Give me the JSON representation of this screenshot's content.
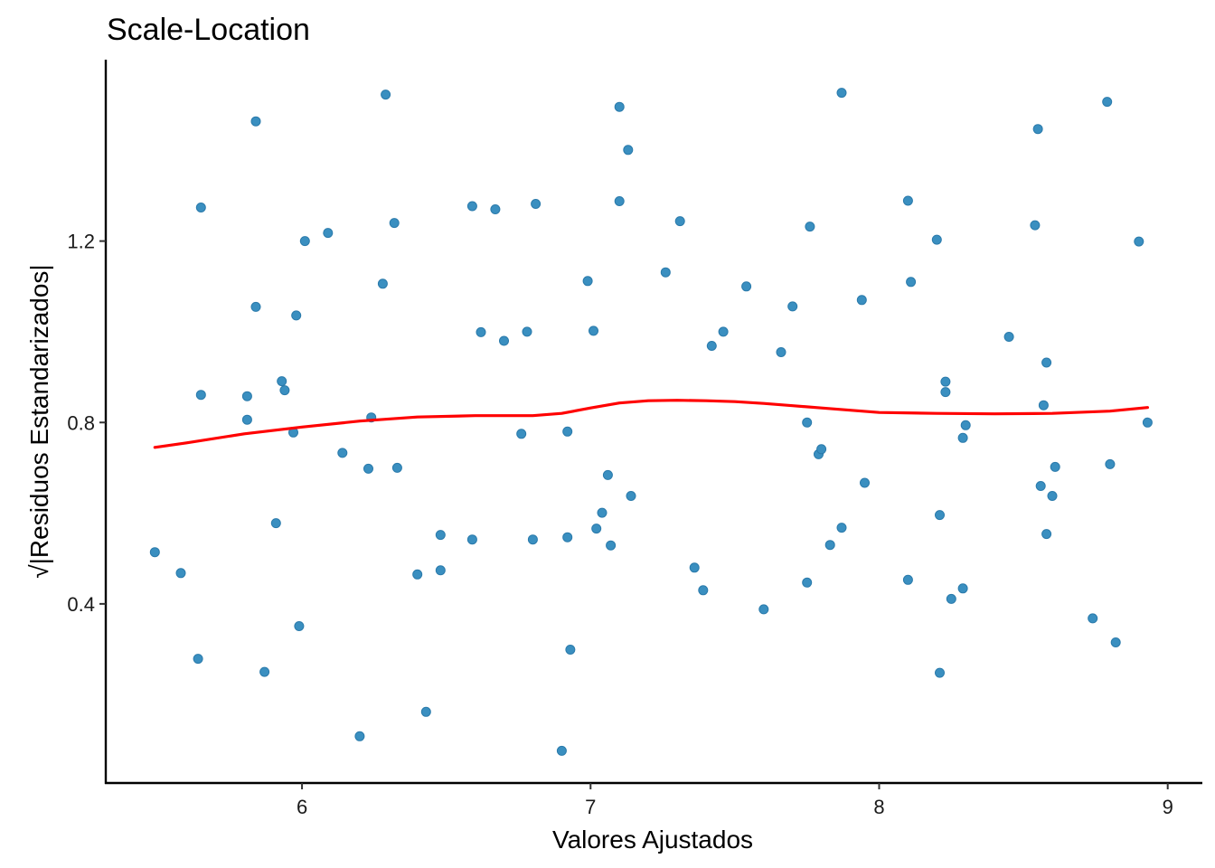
{
  "chart_data": {
    "type": "scatter",
    "title": "Scale-Location",
    "xlabel": "Valores Ajustados",
    "ylabel": "√|Residuos Estandarizados|",
    "xlim": [
      5.32,
      9.12
    ],
    "ylim": [
      0.005,
      1.6
    ],
    "xticks": [
      6,
      7,
      8,
      9
    ],
    "yticks": [
      0.4,
      0.8,
      1.2
    ],
    "xtick_labels": [
      "6",
      "7",
      "8",
      "9"
    ],
    "ytick_labels": [
      "0.4",
      "0.8",
      "1.2"
    ],
    "grid": false,
    "legend": "none",
    "point_color": "#3a8fc0",
    "point_stroke": "#2a7aab",
    "smooth_color": "#ff0000",
    "points": [
      [
        5.49,
        0.514
      ],
      [
        5.58,
        0.468
      ],
      [
        5.64,
        0.279
      ],
      [
        5.65,
        1.274
      ],
      [
        5.65,
        0.861
      ],
      [
        5.81,
        0.858
      ],
      [
        5.81,
        0.806
      ],
      [
        5.84,
        1.464
      ],
      [
        5.84,
        1.055
      ],
      [
        5.87,
        0.25
      ],
      [
        5.91,
        0.578
      ],
      [
        5.93,
        0.891
      ],
      [
        5.94,
        0.871
      ],
      [
        5.97,
        0.778
      ],
      [
        5.98,
        1.036
      ],
      [
        5.99,
        0.351
      ],
      [
        6.01,
        1.2
      ],
      [
        6.09,
        1.218
      ],
      [
        6.14,
        0.733
      ],
      [
        6.2,
        0.108
      ],
      [
        6.23,
        0.698
      ],
      [
        6.24,
        0.811
      ],
      [
        6.28,
        1.106
      ],
      [
        6.29,
        1.523
      ],
      [
        6.32,
        1.24
      ],
      [
        6.33,
        0.7
      ],
      [
        6.4,
        0.465
      ],
      [
        6.43,
        0.162
      ],
      [
        6.48,
        0.552
      ],
      [
        6.48,
        0.474
      ],
      [
        6.59,
        0.542
      ],
      [
        6.59,
        1.277
      ],
      [
        6.62,
        0.999
      ],
      [
        6.67,
        1.27
      ],
      [
        6.7,
        0.98
      ],
      [
        6.76,
        0.775
      ],
      [
        6.78,
        1.0
      ],
      [
        6.8,
        0.542
      ],
      [
        6.81,
        1.282
      ],
      [
        6.9,
        0.076
      ],
      [
        6.92,
        0.547
      ],
      [
        6.92,
        0.78
      ],
      [
        6.93,
        0.299
      ],
      [
        6.99,
        1.112
      ],
      [
        7.01,
        1.002
      ],
      [
        7.02,
        0.566
      ],
      [
        7.04,
        0.601
      ],
      [
        7.06,
        0.684
      ],
      [
        7.07,
        0.529
      ],
      [
        7.1,
        1.288
      ],
      [
        7.1,
        1.496
      ],
      [
        7.13,
        1.401
      ],
      [
        7.14,
        0.638
      ],
      [
        7.26,
        1.131
      ],
      [
        7.31,
        1.244
      ],
      [
        7.36,
        0.48
      ],
      [
        7.39,
        0.43
      ],
      [
        7.42,
        0.969
      ],
      [
        7.46,
        1.0
      ],
      [
        7.54,
        1.1
      ],
      [
        7.6,
        0.388
      ],
      [
        7.66,
        0.955
      ],
      [
        7.7,
        1.056
      ],
      [
        7.75,
        0.447
      ],
      [
        7.75,
        0.8
      ],
      [
        7.76,
        1.232
      ],
      [
        7.79,
        0.73
      ],
      [
        7.8,
        0.741
      ],
      [
        7.83,
        0.53
      ],
      [
        7.87,
        0.568
      ],
      [
        7.87,
        1.527
      ],
      [
        7.94,
        1.07
      ],
      [
        7.95,
        0.667
      ],
      [
        8.1,
        0.453
      ],
      [
        8.1,
        1.289
      ],
      [
        8.11,
        1.11
      ],
      [
        8.2,
        1.203
      ],
      [
        8.21,
        0.596
      ],
      [
        8.21,
        0.248
      ],
      [
        8.23,
        0.867
      ],
      [
        8.23,
        0.89
      ],
      [
        8.25,
        0.411
      ],
      [
        8.29,
        0.434
      ],
      [
        8.29,
        0.766
      ],
      [
        8.3,
        0.794
      ],
      [
        8.45,
        0.989
      ],
      [
        8.54,
        1.235
      ],
      [
        8.55,
        1.447
      ],
      [
        8.56,
        0.66
      ],
      [
        8.57,
        0.838
      ],
      [
        8.58,
        0.554
      ],
      [
        8.58,
        0.932
      ],
      [
        8.6,
        0.638
      ],
      [
        8.61,
        0.702
      ],
      [
        8.74,
        0.368
      ],
      [
        8.79,
        1.507
      ],
      [
        8.8,
        0.708
      ],
      [
        8.82,
        0.315
      ],
      [
        8.9,
        1.199
      ],
      [
        8.93,
        0.8
      ]
    ],
    "smooth_line": [
      [
        5.49,
        0.745
      ],
      [
        5.6,
        0.755
      ],
      [
        5.8,
        0.775
      ],
      [
        6.0,
        0.79
      ],
      [
        6.2,
        0.803
      ],
      [
        6.4,
        0.812
      ],
      [
        6.6,
        0.815
      ],
      [
        6.8,
        0.815
      ],
      [
        6.9,
        0.82
      ],
      [
        7.0,
        0.832
      ],
      [
        7.1,
        0.843
      ],
      [
        7.2,
        0.848
      ],
      [
        7.3,
        0.849
      ],
      [
        7.4,
        0.848
      ],
      [
        7.5,
        0.846
      ],
      [
        7.6,
        0.842
      ],
      [
        7.7,
        0.837
      ],
      [
        7.8,
        0.832
      ],
      [
        8.0,
        0.822
      ],
      [
        8.2,
        0.82
      ],
      [
        8.4,
        0.819
      ],
      [
        8.6,
        0.82
      ],
      [
        8.8,
        0.825
      ],
      [
        8.93,
        0.833
      ]
    ]
  }
}
